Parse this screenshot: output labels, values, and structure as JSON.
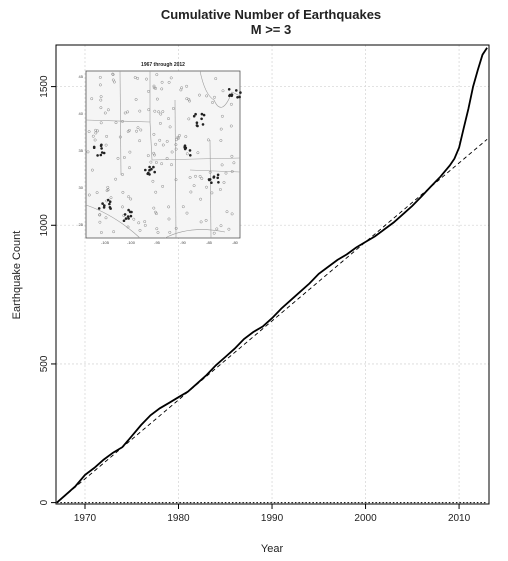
{
  "chart_data": {
    "type": "line",
    "title": "Cumulative Number of Earthquakes",
    "subtitle": "M >= 3",
    "xlabel": "Year",
    "ylabel": "Earthquake Count",
    "xlim": [
      1966.9,
      2013.2
    ],
    "ylim": [
      -5,
      1650
    ],
    "x_ticks": [
      "1970",
      "1980",
      "1990",
      "2000",
      "2010"
    ],
    "y_ticks": [
      "0",
      "500",
      "1000",
      "1500"
    ],
    "grid": true,
    "series": [
      {
        "style": "solid",
        "x": [
          1967,
          1968,
          1969,
          1970,
          1971,
          1972,
          1973,
          1974,
          1975,
          1976,
          1977,
          1978,
          1979,
          1980,
          1981,
          1982,
          1983,
          1984,
          1985,
          1986,
          1987,
          1988,
          1989,
          1990,
          1991,
          1992,
          1993,
          1994,
          1995,
          1996,
          1997,
          1998,
          1999,
          2000,
          2001,
          2002,
          2003,
          2004,
          2005,
          2006,
          2007,
          2008,
          2009,
          2009.5,
          2010,
          2010.5,
          2011,
          2011.5,
          2012,
          2012.5,
          2013
        ],
        "y": [
          0,
          30,
          60,
          100,
          125,
          155,
          180,
          200,
          240,
          280,
          315,
          340,
          360,
          380,
          400,
          430,
          460,
          495,
          525,
          555,
          590,
          615,
          635,
          665,
          700,
          730,
          760,
          790,
          825,
          850,
          875,
          895,
          920,
          940,
          960,
          985,
          1010,
          1040,
          1070,
          1105,
          1140,
          1175,
          1215,
          1240,
          1280,
          1350,
          1420,
          1500,
          1560,
          1615,
          1640
        ]
      },
      {
        "style": "dashed",
        "x": [
          1967,
          2013
        ],
        "y": [
          0,
          1310
        ]
      },
      {
        "style": "dotted",
        "x": [
          1967,
          2013
        ],
        "y": [
          0,
          0
        ]
      }
    ],
    "inset": {
      "type": "map",
      "title": "1967 through 2012",
      "y_ticks": [
        "45",
        "40",
        "35",
        "30",
        "25"
      ],
      "x_ticks": [
        "-105",
        "-100",
        "-95",
        "-90",
        "-85",
        "-80"
      ]
    }
  }
}
